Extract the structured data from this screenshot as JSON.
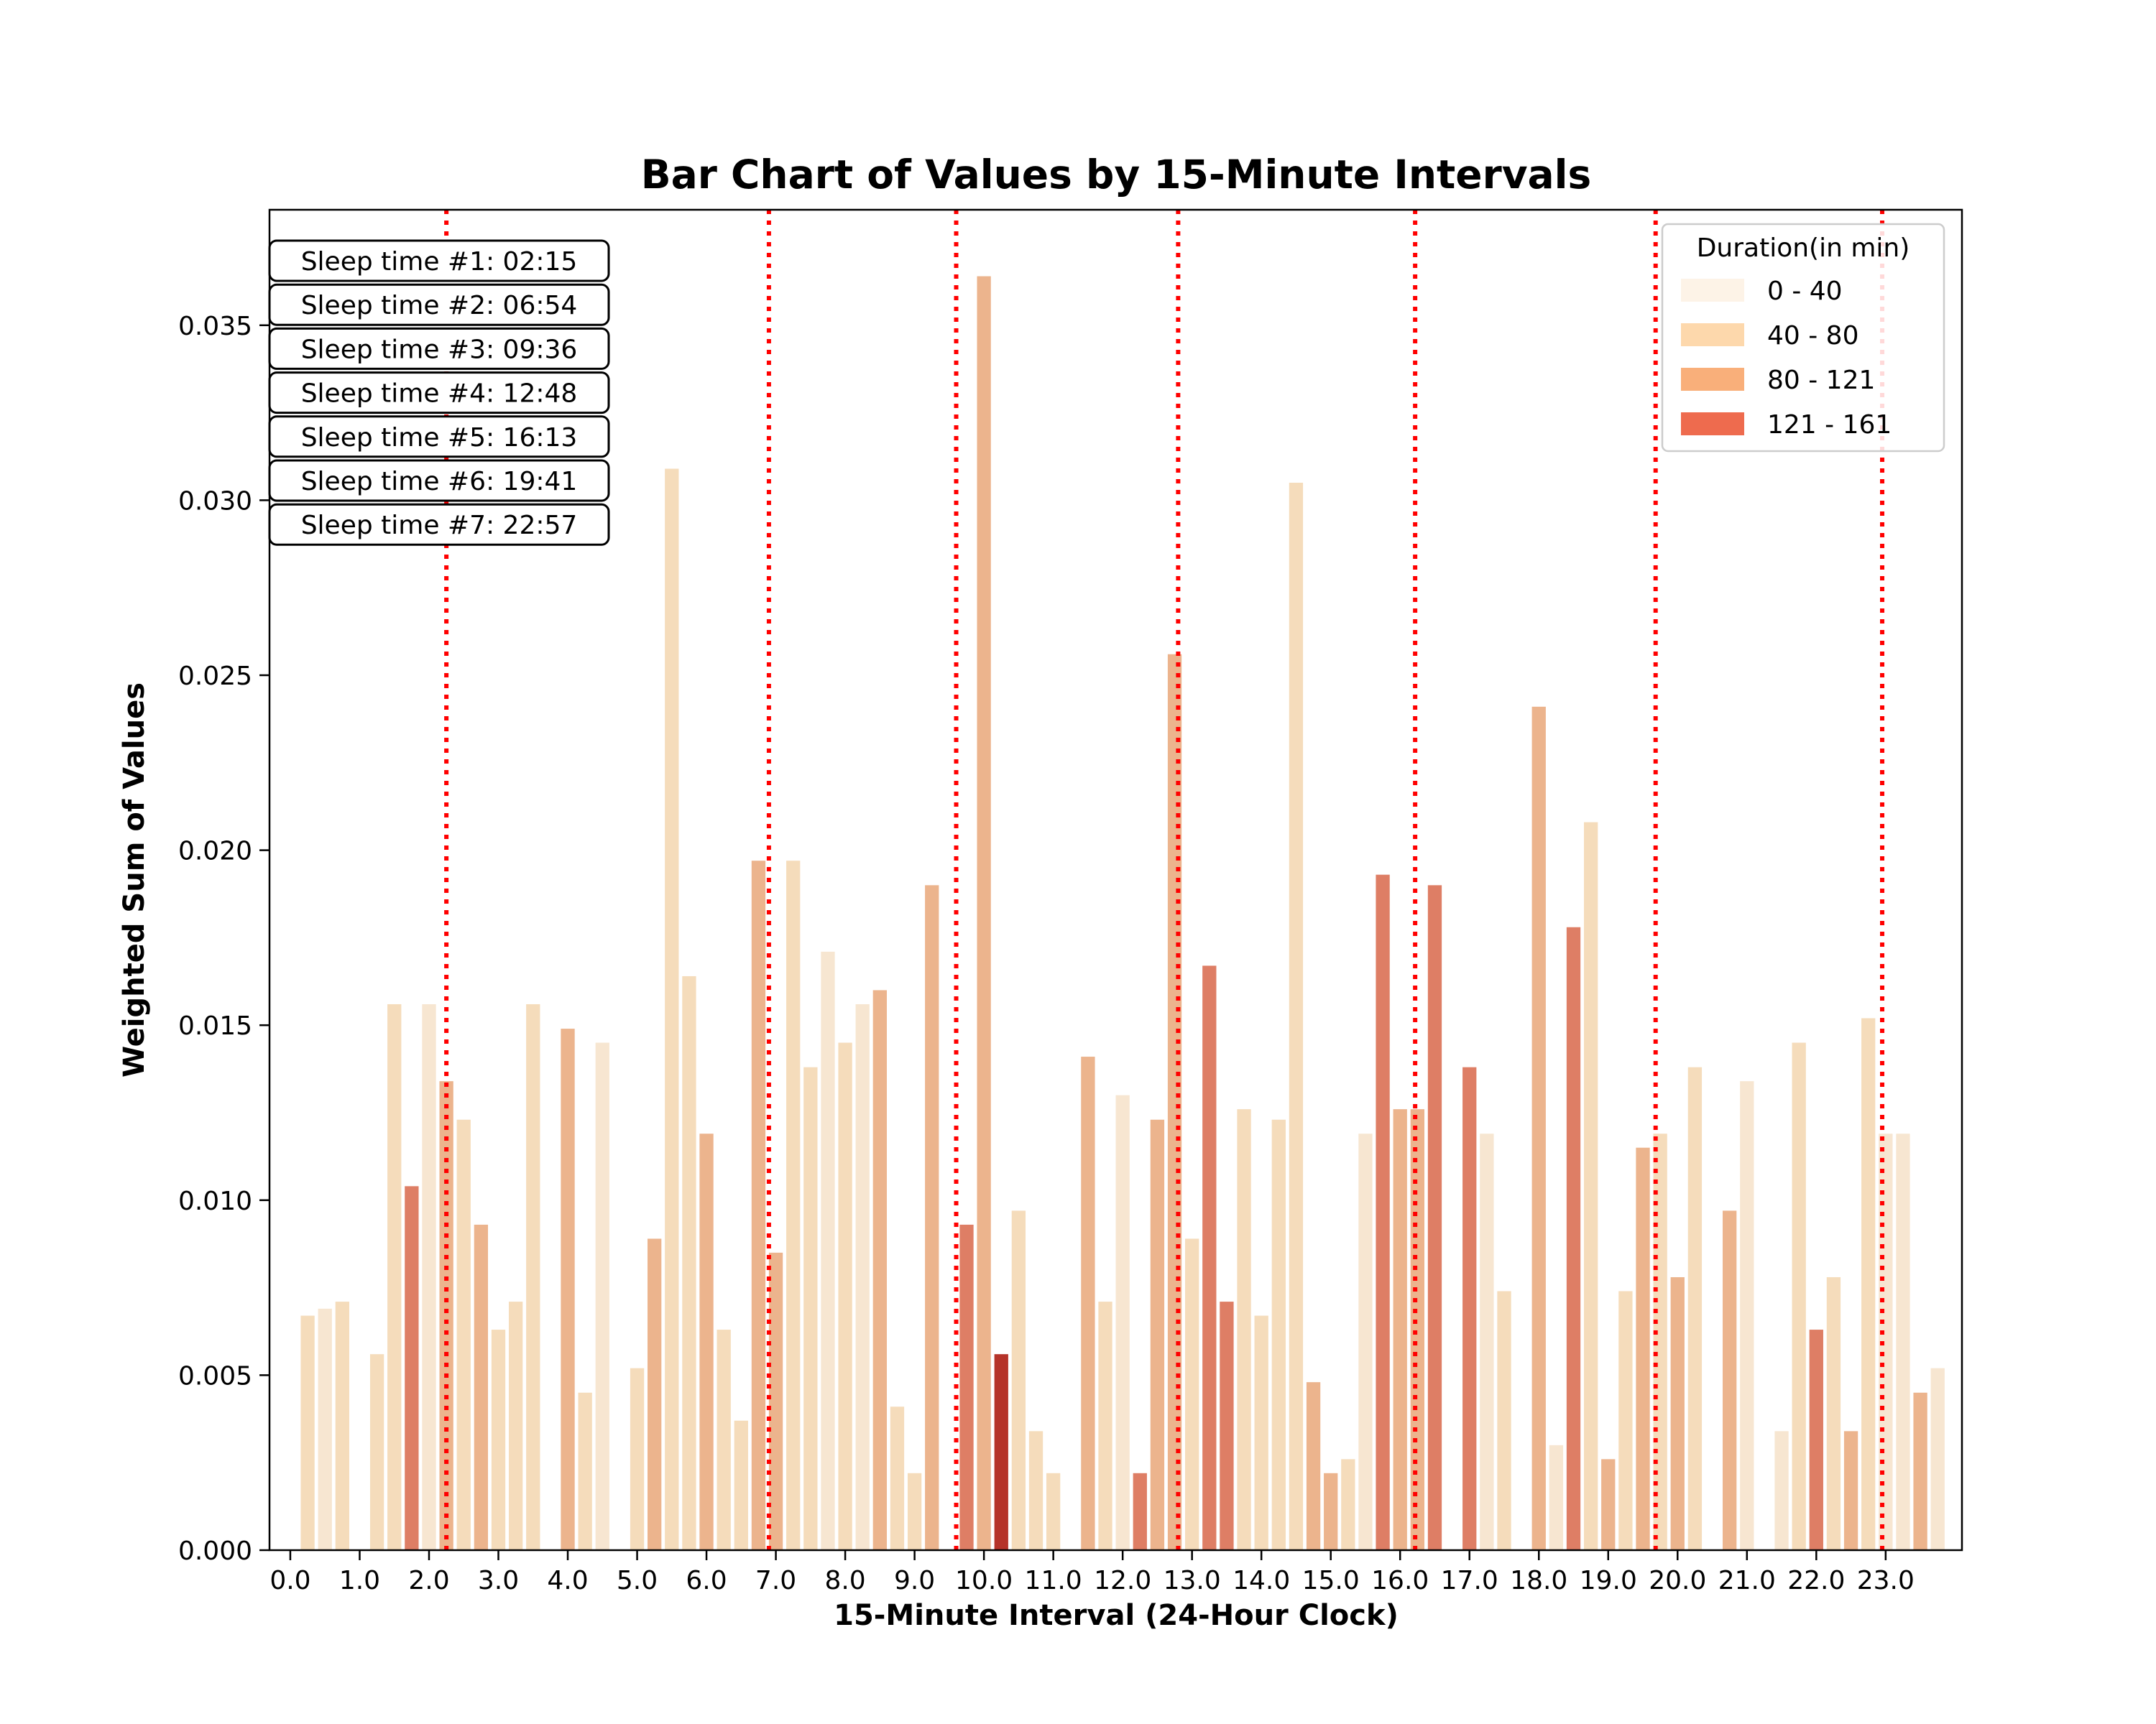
{
  "chart_data": {
    "type": "bar",
    "title": "Bar Chart of Values by 15-Minute Intervals",
    "xlabel": "15-Minute Interval (24-Hour Clock)",
    "ylabel": "Weighted Sum of Values",
    "xlim": [
      -0.3,
      24.1
    ],
    "ylim": [
      0,
      0.0383
    ],
    "x_tick_labels": [
      "0.0",
      "1.0",
      "2.0",
      "3.0",
      "4.0",
      "5.0",
      "6.0",
      "7.0",
      "8.0",
      "9.0",
      "10.0",
      "11.0",
      "12.0",
      "13.0",
      "14.0",
      "15.0",
      "16.0",
      "17.0",
      "18.0",
      "19.0",
      "20.0",
      "21.0",
      "22.0",
      "23.0"
    ],
    "y_tick_labels": [
      "0.000",
      "0.005",
      "0.010",
      "0.015",
      "0.020",
      "0.025",
      "0.030",
      "0.035"
    ],
    "legend": {
      "title": "Duration(in min)",
      "placement": "top-right",
      "entries": [
        {
          "label": "0 - 40",
          "color": "#fdf3e7"
        },
        {
          "label": "40 - 80",
          "color": "#fdd8ac"
        },
        {
          "label": "80 - 121",
          "color": "#f9af7a"
        },
        {
          "label": "121 - 161",
          "color": "#ee6b4e"
        }
      ]
    },
    "bar_colors": {
      "1": "#f7e6d1",
      "2": "#f5dcbb",
      "3": "#ecb48d",
      "4": "#de7e65",
      "5": "#b53329"
    },
    "bars": [
      {
        "x": 0.25,
        "y": 0.0067,
        "c": 2
      },
      {
        "x": 0.5,
        "y": 0.0069,
        "c": 1
      },
      {
        "x": 0.75,
        "y": 0.0071,
        "c": 2
      },
      {
        "x": 1.25,
        "y": 0.0056,
        "c": 2
      },
      {
        "x": 1.5,
        "y": 0.0156,
        "c": 2
      },
      {
        "x": 1.75,
        "y": 0.0104,
        "c": 4
      },
      {
        "x": 2.0,
        "y": 0.0156,
        "c": 1
      },
      {
        "x": 2.25,
        "y": 0.0134,
        "c": 3
      },
      {
        "x": 2.5,
        "y": 0.0123,
        "c": 2
      },
      {
        "x": 2.75,
        "y": 0.0093,
        "c": 3
      },
      {
        "x": 3.0,
        "y": 0.0063,
        "c": 2
      },
      {
        "x": 3.25,
        "y": 0.0071,
        "c": 2
      },
      {
        "x": 3.5,
        "y": 0.0156,
        "c": 2
      },
      {
        "x": 4.0,
        "y": 0.0149,
        "c": 3
      },
      {
        "x": 4.25,
        "y": 0.0045,
        "c": 2
      },
      {
        "x": 4.5,
        "y": 0.0145,
        "c": 1
      },
      {
        "x": 5.0,
        "y": 0.0052,
        "c": 2
      },
      {
        "x": 5.25,
        "y": 0.0089,
        "c": 3
      },
      {
        "x": 5.5,
        "y": 0.0309,
        "c": 2
      },
      {
        "x": 5.75,
        "y": 0.0164,
        "c": 2
      },
      {
        "x": 6.0,
        "y": 0.0119,
        "c": 3
      },
      {
        "x": 6.25,
        "y": 0.0063,
        "c": 2
      },
      {
        "x": 6.5,
        "y": 0.0037,
        "c": 2
      },
      {
        "x": 6.75,
        "y": 0.0197,
        "c": 3
      },
      {
        "x": 7.0,
        "y": 0.0085,
        "c": 3
      },
      {
        "x": 7.25,
        "y": 0.0197,
        "c": 2
      },
      {
        "x": 7.5,
        "y": 0.0138,
        "c": 2
      },
      {
        "x": 7.75,
        "y": 0.0171,
        "c": 1
      },
      {
        "x": 8.0,
        "y": 0.0145,
        "c": 2
      },
      {
        "x": 8.25,
        "y": 0.0156,
        "c": 1
      },
      {
        "x": 8.5,
        "y": 0.016,
        "c": 3
      },
      {
        "x": 8.75,
        "y": 0.0041,
        "c": 2
      },
      {
        "x": 9.0,
        "y": 0.0022,
        "c": 2
      },
      {
        "x": 9.25,
        "y": 0.019,
        "c": 3
      },
      {
        "x": 9.75,
        "y": 0.0093,
        "c": 4
      },
      {
        "x": 10.0,
        "y": 0.0364,
        "c": 3
      },
      {
        "x": 10.25,
        "y": 0.0056,
        "c": 5
      },
      {
        "x": 10.5,
        "y": 0.0097,
        "c": 2
      },
      {
        "x": 10.75,
        "y": 0.0034,
        "c": 2
      },
      {
        "x": 11.0,
        "y": 0.0022,
        "c": 2
      },
      {
        "x": 11.5,
        "y": 0.0141,
        "c": 3
      },
      {
        "x": 11.75,
        "y": 0.0071,
        "c": 2
      },
      {
        "x": 12.0,
        "y": 0.013,
        "c": 1
      },
      {
        "x": 12.25,
        "y": 0.0022,
        "c": 4
      },
      {
        "x": 12.5,
        "y": 0.0123,
        "c": 3
      },
      {
        "x": 12.75,
        "y": 0.0256,
        "c": 3
      },
      {
        "x": 13.0,
        "y": 0.0089,
        "c": 2
      },
      {
        "x": 13.25,
        "y": 0.0167,
        "c": 4
      },
      {
        "x": 13.5,
        "y": 0.0071,
        "c": 4
      },
      {
        "x": 13.75,
        "y": 0.0126,
        "c": 2
      },
      {
        "x": 14.0,
        "y": 0.0067,
        "c": 2
      },
      {
        "x": 14.25,
        "y": 0.0123,
        "c": 2
      },
      {
        "x": 14.5,
        "y": 0.0305,
        "c": 2
      },
      {
        "x": 14.75,
        "y": 0.0048,
        "c": 3
      },
      {
        "x": 15.0,
        "y": 0.0022,
        "c": 3
      },
      {
        "x": 15.25,
        "y": 0.0026,
        "c": 2
      },
      {
        "x": 15.5,
        "y": 0.0119,
        "c": 1
      },
      {
        "x": 15.75,
        "y": 0.0193,
        "c": 4
      },
      {
        "x": 16.0,
        "y": 0.0126,
        "c": 3
      },
      {
        "x": 16.25,
        "y": 0.0126,
        "c": 3
      },
      {
        "x": 16.5,
        "y": 0.019,
        "c": 4
      },
      {
        "x": 17.0,
        "y": 0.0138,
        "c": 4
      },
      {
        "x": 17.25,
        "y": 0.0119,
        "c": 1
      },
      {
        "x": 17.5,
        "y": 0.0074,
        "c": 2
      },
      {
        "x": 18.0,
        "y": 0.0241,
        "c": 3
      },
      {
        "x": 18.25,
        "y": 0.003,
        "c": 1
      },
      {
        "x": 18.5,
        "y": 0.0178,
        "c": 4
      },
      {
        "x": 18.75,
        "y": 0.0208,
        "c": 2
      },
      {
        "x": 19.0,
        "y": 0.0026,
        "c": 3
      },
      {
        "x": 19.25,
        "y": 0.0074,
        "c": 2
      },
      {
        "x": 19.5,
        "y": 0.0115,
        "c": 3
      },
      {
        "x": 19.75,
        "y": 0.0119,
        "c": 2
      },
      {
        "x": 20.0,
        "y": 0.0078,
        "c": 3
      },
      {
        "x": 20.25,
        "y": 0.0138,
        "c": 2
      },
      {
        "x": 20.75,
        "y": 0.0097,
        "c": 3
      },
      {
        "x": 21.0,
        "y": 0.0134,
        "c": 1
      },
      {
        "x": 21.5,
        "y": 0.0034,
        "c": 1
      },
      {
        "x": 21.75,
        "y": 0.0145,
        "c": 2
      },
      {
        "x": 22.0,
        "y": 0.0063,
        "c": 4
      },
      {
        "x": 22.25,
        "y": 0.0078,
        "c": 2
      },
      {
        "x": 22.5,
        "y": 0.0034,
        "c": 3
      },
      {
        "x": 22.75,
        "y": 0.0152,
        "c": 2
      },
      {
        "x": 23.0,
        "y": 0.0119,
        "c": 1
      },
      {
        "x": 23.25,
        "y": 0.0119,
        "c": 1
      },
      {
        "x": 23.5,
        "y": 0.0045,
        "c": 3
      },
      {
        "x": 23.75,
        "y": 0.0052,
        "c": 1
      }
    ],
    "sleep_lines": {
      "color": "#ff0000",
      "x": [
        2.25,
        6.9,
        9.6,
        12.8,
        16.2167,
        19.6833,
        22.95
      ],
      "labels": [
        "Sleep time #1: 02:15",
        "Sleep time #2: 06:54",
        "Sleep time #3: 09:36",
        "Sleep time #4: 12:48",
        "Sleep time #5: 16:13",
        "Sleep time #6: 19:41",
        "Sleep time #7: 22:57"
      ]
    }
  }
}
